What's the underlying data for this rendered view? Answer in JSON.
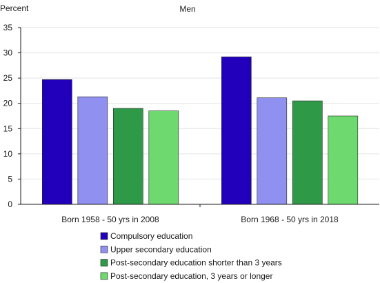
{
  "chart_data": {
    "type": "bar",
    "title": "Men",
    "ylabel": "Percent",
    "xlabel": "",
    "ylim": [
      0,
      35
    ],
    "yticks": [
      0,
      5,
      10,
      15,
      20,
      25,
      30,
      35
    ],
    "grid": "horizontal",
    "legend_position": "bottom",
    "categories": [
      "Born 1958 - 50 yrs in 2008",
      "Born 1968 - 50 yrs in 2018"
    ],
    "series": [
      {
        "name": "Compulsory education",
        "color": "#2200bb",
        "values": [
          24.7,
          29.2
        ]
      },
      {
        "name": "Upper secondary education",
        "color": "#9090f0",
        "values": [
          21.3,
          21.1
        ]
      },
      {
        "name": "Post-secondary education shorter than 3 years",
        "color": "#2e9a48",
        "values": [
          19.0,
          20.5
        ]
      },
      {
        "name": "Post-secondary education, 3 years or longer",
        "color": "#6ed96e",
        "values": [
          18.5,
          17.5
        ]
      }
    ]
  }
}
